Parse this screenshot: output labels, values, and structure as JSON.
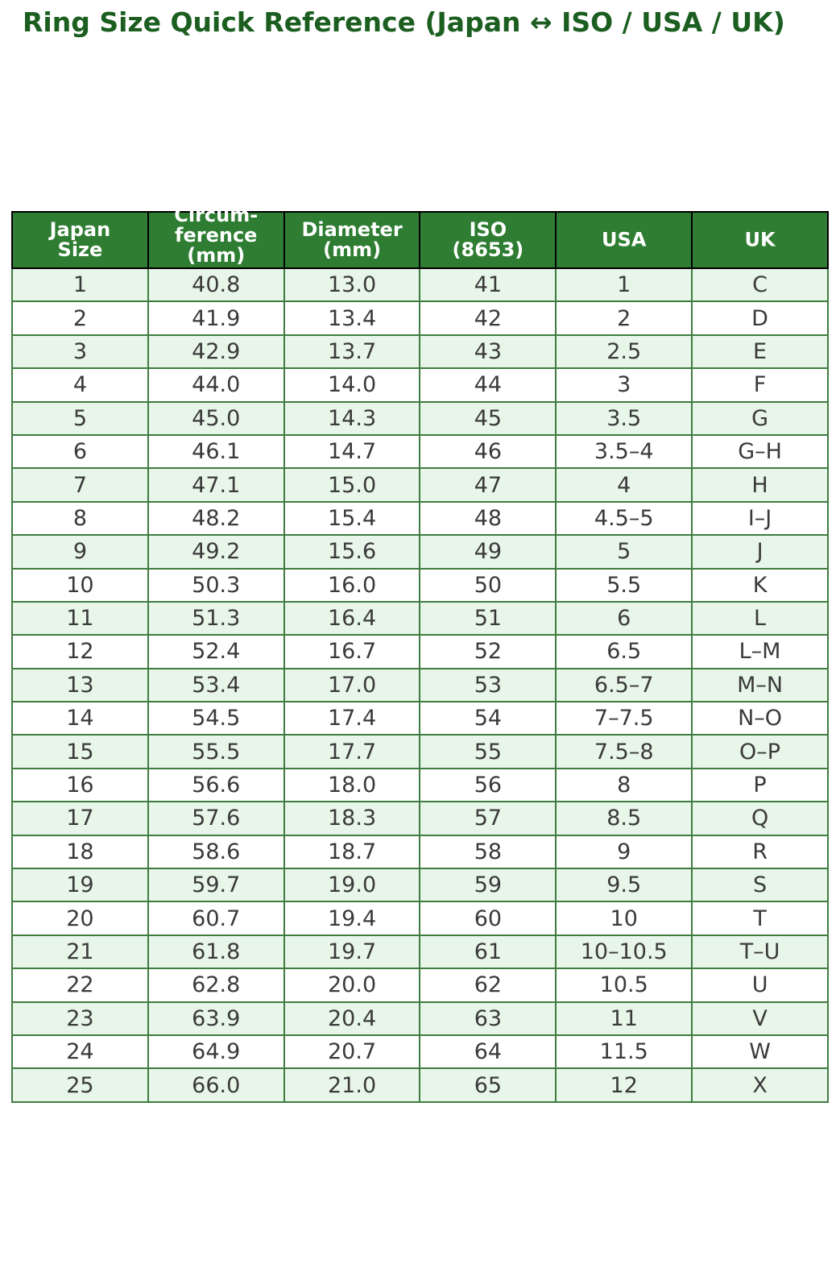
{
  "page": {
    "title": "Ring Size Quick Reference (Japan ↔ ISO / USA / UK)"
  },
  "colors": {
    "title_text": "#1b5e20",
    "header_bg": "#2e7d32",
    "header_text": "#ffffff",
    "header_border": "#000000",
    "body_border": "#3e7c40",
    "row_alt_bg": "#e8f5e9",
    "row_bg": "#ffffff",
    "cell_text": "#3a3a3a"
  },
  "table": {
    "headers": [
      {
        "id": "japan-size",
        "label": "Japan\nSize"
      },
      {
        "id": "circumference-mm",
        "label": "Circum-\nference\n(mm)"
      },
      {
        "id": "diameter-mm",
        "label": "Diameter\n(mm)"
      },
      {
        "id": "iso-8653",
        "label": "ISO\n(8653)"
      },
      {
        "id": "usa",
        "label": "USA"
      },
      {
        "id": "uk",
        "label": "UK"
      }
    ],
    "rows": [
      [
        "1",
        "40.8",
        "13.0",
        "41",
        "1",
        "C"
      ],
      [
        "2",
        "41.9",
        "13.4",
        "42",
        "2",
        "D"
      ],
      [
        "3",
        "42.9",
        "13.7",
        "43",
        "2.5",
        "E"
      ],
      [
        "4",
        "44.0",
        "14.0",
        "44",
        "3",
        "F"
      ],
      [
        "5",
        "45.0",
        "14.3",
        "45",
        "3.5",
        "G"
      ],
      [
        "6",
        "46.1",
        "14.7",
        "46",
        "3.5–4",
        "G–H"
      ],
      [
        "7",
        "47.1",
        "15.0",
        "47",
        "4",
        "H"
      ],
      [
        "8",
        "48.2",
        "15.4",
        "48",
        "4.5–5",
        "I–J"
      ],
      [
        "9",
        "49.2",
        "15.6",
        "49",
        "5",
        "J"
      ],
      [
        "10",
        "50.3",
        "16.0",
        "50",
        "5.5",
        "K"
      ],
      [
        "11",
        "51.3",
        "16.4",
        "51",
        "6",
        "L"
      ],
      [
        "12",
        "52.4",
        "16.7",
        "52",
        "6.5",
        "L–M"
      ],
      [
        "13",
        "53.4",
        "17.0",
        "53",
        "6.5–7",
        "M–N"
      ],
      [
        "14",
        "54.5",
        "17.4",
        "54",
        "7–7.5",
        "N–O"
      ],
      [
        "15",
        "55.5",
        "17.7",
        "55",
        "7.5–8",
        "O–P"
      ],
      [
        "16",
        "56.6",
        "18.0",
        "56",
        "8",
        "P"
      ],
      [
        "17",
        "57.6",
        "18.3",
        "57",
        "8.5",
        "Q"
      ],
      [
        "18",
        "58.6",
        "18.7",
        "58",
        "9",
        "R"
      ],
      [
        "19",
        "59.7",
        "19.0",
        "59",
        "9.5",
        "S"
      ],
      [
        "20",
        "60.7",
        "19.4",
        "60",
        "10",
        "T"
      ],
      [
        "21",
        "61.8",
        "19.7",
        "61",
        "10–10.5",
        "T–U"
      ],
      [
        "22",
        "62.8",
        "20.0",
        "62",
        "10.5",
        "U"
      ],
      [
        "23",
        "63.9",
        "20.4",
        "63",
        "11",
        "V"
      ],
      [
        "24",
        "64.9",
        "20.7",
        "64",
        "11.5",
        "W"
      ],
      [
        "25",
        "66.0",
        "21.0",
        "65",
        "12",
        "X"
      ]
    ]
  }
}
